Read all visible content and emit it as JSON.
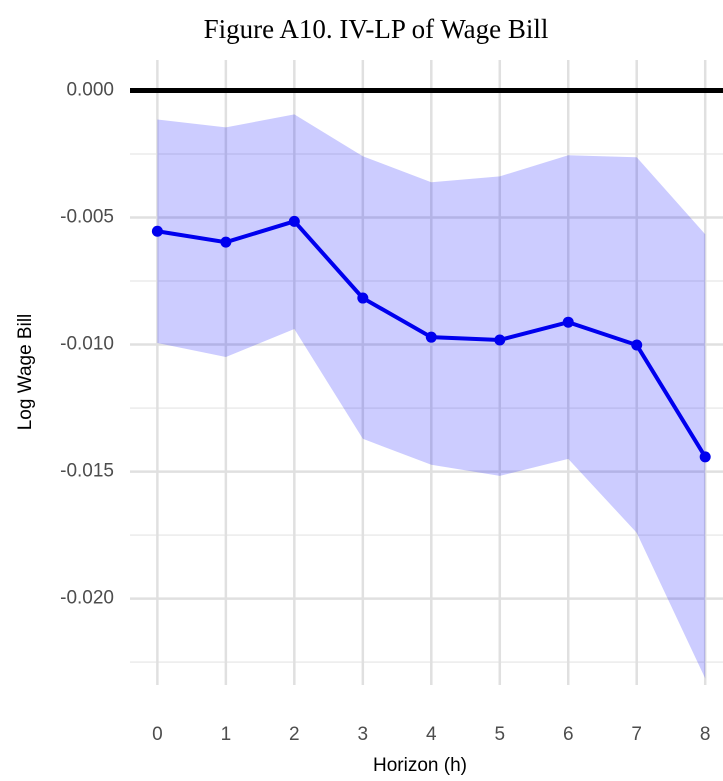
{
  "chart_data": {
    "type": "line",
    "title": "Figure A10. IV-LP of Wage Bill",
    "xlabel": "Horizon (h)",
    "ylabel": "Log Wage Bill",
    "x": [
      0,
      1,
      2,
      3,
      4,
      5,
      6,
      7,
      8
    ],
    "values": [
      -0.00554,
      -0.00597,
      -0.00515,
      -0.00817,
      -0.00971,
      -0.00982,
      -0.00912,
      -0.01002,
      -0.01442
    ],
    "upper": [
      -0.00114,
      -0.00145,
      -0.00094,
      -0.00259,
      -0.00361,
      -0.00338,
      -0.00255,
      -0.00263,
      -0.00566
    ],
    "lower": [
      -0.00994,
      -0.01049,
      -0.00939,
      -0.01371,
      -0.01473,
      -0.01517,
      -0.0145,
      -0.01741,
      -0.02314
    ],
    "color": "#0000ee",
    "band_color": "rgba(0,0,255,0.2)",
    "xlim": [
      -0.4,
      8.26
    ],
    "ylim": [
      -0.0234,
      0.0012
    ],
    "xticks": [
      0,
      1,
      2,
      3,
      4,
      5,
      6,
      7,
      8
    ],
    "yticks": [
      {
        "value": 0,
        "label": "0.000"
      },
      {
        "value": -0.005,
        "label": "-0.005"
      },
      {
        "value": -0.01,
        "label": "-0.010"
      },
      {
        "value": -0.015,
        "label": "-0.015"
      },
      {
        "value": -0.02,
        "label": "-0.020"
      }
    ],
    "minor_yticks": [
      -0.0025,
      -0.0075,
      -0.0125,
      -0.0175,
      -0.0225
    ],
    "hline": 0,
    "grid": true
  }
}
